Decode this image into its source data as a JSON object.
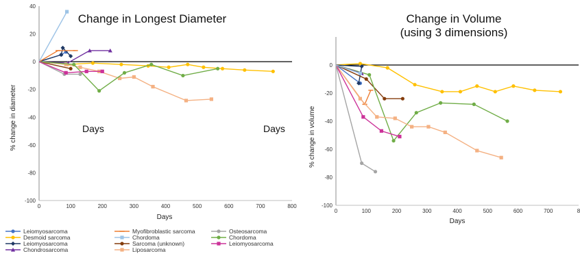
{
  "chart_data": [
    {
      "type": "line",
      "title": "Change in Longest Diameter",
      "xlabel": "Days",
      "ylabel": "% change in diameter",
      "xlim": [
        0,
        800
      ],
      "ylim": [
        -100,
        40
      ],
      "x_ticks": [
        "0",
        "100",
        "200",
        "300",
        "400",
        "500",
        "600",
        "700",
        "800"
      ],
      "y_ticks": [
        "40",
        "20",
        "0",
        "-20",
        "-40",
        "-60",
        "-80",
        "-100"
      ],
      "annotations": [
        "Days",
        "Days"
      ],
      "series": [
        {
          "name": "Leiomyosarcoma",
          "color": "#4472c4",
          "marker": "circle",
          "points": [
            [
              0,
              0
            ],
            [
              70,
              5
            ],
            [
              85,
              7
            ]
          ]
        },
        {
          "name": "Desmoid sarcoma",
          "color": "#ffc000",
          "marker": "circle",
          "points": [
            [
              0,
              0
            ],
            [
              90,
              -2
            ],
            [
              170,
              -1
            ],
            [
              260,
              -2
            ],
            [
              345,
              -3
            ],
            [
              410,
              -4
            ],
            [
              470,
              -2
            ],
            [
              520,
              -4
            ],
            [
              580,
              -5
            ],
            [
              650,
              -6
            ],
            [
              740,
              -7
            ]
          ]
        },
        {
          "name": "Leiomyosarcoma",
          "color": "#1f3864",
          "marker": "diamond",
          "points": [
            [
              0,
              0
            ],
            [
              70,
              5
            ],
            [
              75,
              10
            ],
            [
              100,
              4
            ]
          ]
        },
        {
          "name": "Chondrosarcoma",
          "color": "#7030a0",
          "marker": "triangle",
          "points": [
            [
              0,
              0
            ],
            [
              90,
              -1
            ],
            [
              160,
              8
            ],
            [
              225,
              8
            ]
          ]
        },
        {
          "name": "Myofibroblastic sarcoma",
          "color": "#ed7d31",
          "marker": "dash",
          "points": [
            [
              0,
              0
            ],
            [
              60,
              8
            ],
            [
              115,
              8
            ]
          ]
        },
        {
          "name": "Chordoma",
          "color": "#9dc3e6",
          "marker": "square",
          "points": [
            [
              0,
              0
            ],
            [
              88,
              36
            ]
          ]
        },
        {
          "name": "Sarcoma (unknown)",
          "color": "#843c0c",
          "marker": "circle",
          "points": [
            [
              0,
              0
            ],
            [
              100,
              -5
            ]
          ]
        },
        {
          "name": "Liposarcoma",
          "color": "#f4b183",
          "marker": "square",
          "points": [
            [
              0,
              0
            ],
            [
              85,
              -2
            ],
            [
              130,
              -4
            ],
            [
              190,
              -7
            ],
            [
              255,
              -12
            ],
            [
              300,
              -11
            ],
            [
              360,
              -18
            ],
            [
              465,
              -28
            ],
            [
              545,
              -27
            ]
          ]
        },
        {
          "name": "Osteosarcoma",
          "color": "#a5a5a5",
          "marker": "circle",
          "points": [
            [
              0,
              0
            ],
            [
              80,
              -9
            ],
            [
              130,
              -9
            ]
          ]
        },
        {
          "name": "Chordoma",
          "color": "#70ad47",
          "marker": "circle",
          "points": [
            [
              0,
              0
            ],
            [
              110,
              -2
            ],
            [
              190,
              -21
            ],
            [
              270,
              -8
            ],
            [
              355,
              -2
            ],
            [
              455,
              -10
            ],
            [
              565,
              -5
            ]
          ]
        },
        {
          "name": "Leiomyosarcoma",
          "color": "#cc3399",
          "marker": "square",
          "points": [
            [
              0,
              0
            ],
            [
              85,
              -8
            ],
            [
              150,
              -7
            ],
            [
              200,
              -7
            ]
          ]
        }
      ]
    },
    {
      "type": "line",
      "title": "Change in Volume",
      "subtitle": "(using 3 dimensions)",
      "xlabel": "Days",
      "ylabel": "% change in volume",
      "xlim": [
        0,
        800
      ],
      "ylim": [
        -100,
        20
      ],
      "x_ticks": [
        "0",
        "100",
        "200",
        "300",
        "400",
        "500",
        "600",
        "700",
        "8"
      ],
      "y_ticks": [
        "0",
        "-20",
        "-40",
        "-60",
        "-80",
        "-100"
      ],
      "series": [
        {
          "name": "Desmoid sarcoma",
          "color": "#ffc000",
          "marker": "circle",
          "points": [
            [
              0,
              0
            ],
            [
              80,
              1
            ],
            [
              170,
              -2
            ],
            [
              260,
              -14
            ],
            [
              350,
              -19
            ],
            [
              410,
              -19
            ],
            [
              465,
              -15
            ],
            [
              525,
              -19
            ],
            [
              585,
              -15
            ],
            [
              655,
              -18
            ],
            [
              740,
              -19
            ]
          ]
        },
        {
          "name": "Leiomyosarcoma",
          "color": "#4472c4",
          "marker": "circle",
          "points": [
            [
              0,
              0
            ],
            [
              80,
              -13
            ]
          ]
        },
        {
          "name": "Leiomyosarcoma",
          "color": "#1f3864",
          "marker": "diamond",
          "points": [
            [
              0,
              0
            ],
            [
              85,
              -1
            ],
            [
              75,
              -13
            ]
          ]
        },
        {
          "name": "Myofibroblastic sarcoma",
          "color": "#ed7d31",
          "marker": "dash",
          "points": [
            [
              0,
              0
            ],
            [
              95,
              -28
            ],
            [
              115,
              -18
            ]
          ]
        },
        {
          "name": "Sarcoma (unknown)",
          "color": "#843c0c",
          "marker": "circle",
          "points": [
            [
              0,
              0
            ],
            [
              100,
              -10
            ],
            [
              160,
              -24
            ],
            [
              220,
              -24
            ]
          ]
        },
        {
          "name": "Chordoma",
          "color": "#70ad47",
          "marker": "circle",
          "points": [
            [
              0,
              0
            ],
            [
              110,
              -7
            ],
            [
              190,
              -54
            ],
            [
              265,
              -34
            ],
            [
              345,
              -27
            ],
            [
              455,
              -28
            ],
            [
              565,
              -40
            ]
          ]
        },
        {
          "name": "Liposarcoma",
          "color": "#f4b183",
          "marker": "square",
          "points": [
            [
              0,
              0
            ],
            [
              80,
              -24
            ],
            [
              135,
              -37
            ],
            [
              195,
              -38
            ],
            [
              250,
              -44
            ],
            [
              305,
              -44
            ],
            [
              360,
              -48
            ],
            [
              465,
              -61
            ],
            [
              545,
              -66
            ]
          ]
        },
        {
          "name": "Leiomyosarcoma",
          "color": "#cc3399",
          "marker": "square",
          "points": [
            [
              0,
              0
            ],
            [
              90,
              -37
            ],
            [
              150,
              -47
            ],
            [
              210,
              -51
            ]
          ]
        },
        {
          "name": "Osteosarcoma",
          "color": "#a5a5a5",
          "marker": "circle",
          "points": [
            [
              0,
              0
            ],
            [
              85,
              -70
            ],
            [
              130,
              -76
            ]
          ]
        },
        {
          "name": "Chondrosarcoma",
          "color": "#7030a0",
          "marker": "triangle",
          "points": [
            [
              0,
              0
            ],
            [
              85,
              -6
            ]
          ]
        },
        {
          "name": "Chordoma",
          "color": "#9dc3e6",
          "marker": "square",
          "points": [
            [
              0,
              0
            ],
            [
              80,
              -6
            ]
          ]
        }
      ]
    }
  ],
  "legend": [
    {
      "label": "Leiomyosarcoma",
      "color": "#4472c4",
      "marker": "circle"
    },
    {
      "label": "Myofibroblastic sarcoma",
      "color": "#ed7d31",
      "marker": "dash"
    },
    {
      "label": "Osteosarcoma",
      "color": "#a5a5a5",
      "marker": "circle"
    },
    {
      "label": "Desmoid sarcoma",
      "color": "#ffc000",
      "marker": "circle"
    },
    {
      "label": "Chordoma",
      "color": "#9dc3e6",
      "marker": "square"
    },
    {
      "label": "Chordoma",
      "color": "#70ad47",
      "marker": "circle"
    },
    {
      "label": "Leiomyosarcoma",
      "color": "#1f3864",
      "marker": "diamond"
    },
    {
      "label": "Sarcoma (unknown)",
      "color": "#843c0c",
      "marker": "circle"
    },
    {
      "label": "Leiomyosarcoma",
      "color": "#cc3399",
      "marker": "square"
    },
    {
      "label": "Chondrosarcoma",
      "color": "#7030a0",
      "marker": "triangle"
    },
    {
      "label": "Liposarcoma",
      "color": "#f4b183",
      "marker": "square"
    }
  ]
}
